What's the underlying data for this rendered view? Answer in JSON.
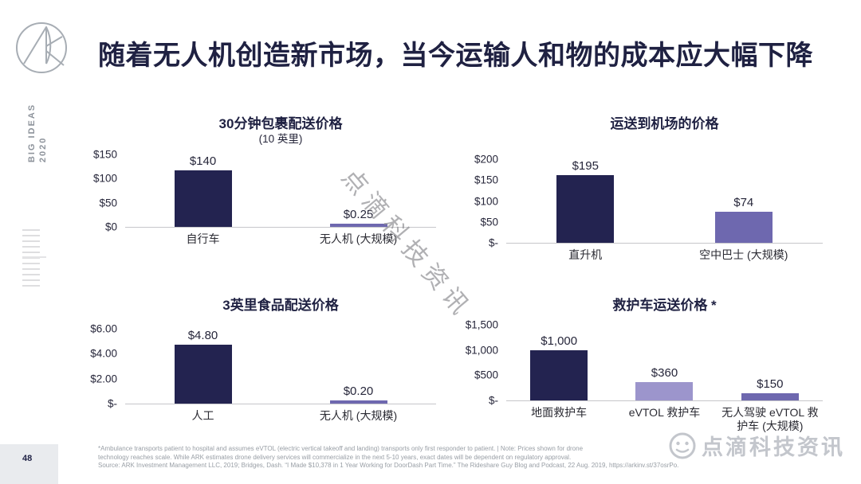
{
  "slide": {
    "title": "随着无人机创造新市场，当今运输人和物的成本应大幅下降",
    "sidebar_line1": "BIG IDEAS",
    "sidebar_line2": "2020",
    "page_number": "48",
    "watermark_center": "点滴科技资讯",
    "watermark_corner": "点滴科技资讯"
  },
  "footnote": {
    "line1": "*Ambulance transports patient to hospital and assumes eVTOL (electric vertical takeoff and landing) transports only first responder to patient.  |  Note: Prices shown for drone",
    "line2": "technology reaches scale. While ARK estimates drone delivery services will commercialize in the next 5-10 years, exact dates will be dependent on regulatory approval.",
    "line3": "Source: ARK Investment Management LLC, 2019; Bridges, Dash. “I Made $10,378 in 1 Year Working for DoorDash Part Time.” The Rideshare Guy Blog and Podcast, 22 Aug. 2019, https://arkinv.st/37osrPo."
  },
  "colors": {
    "navy": "#232350",
    "purple": "#6e68af",
    "light_purple": "#9c95cc",
    "axis_line": "#c6c6ca",
    "title_text": "#1f2142"
  },
  "chart_data": [
    {
      "type": "bar",
      "title_bold": "30",
      "title": "分钟包裹配送价格",
      "subtitle": "(10 英里)",
      "ylabel": "",
      "ylim": [
        0,
        150
      ],
      "ymax": 150,
      "yticks": [
        "$150",
        "$100",
        "$50",
        "$0"
      ],
      "categories": [
        "自行车",
        "无人机 (大规模)"
      ],
      "values": [
        140,
        0.25
      ],
      "bars": [
        {
          "label": "自行车",
          "value": 140,
          "value_label": "$140",
          "color": "#232350"
        },
        {
          "label": "无人机 (大规模)",
          "value": 0.25,
          "value_label": "$0.25",
          "color": "#6e68af"
        }
      ]
    },
    {
      "type": "bar",
      "title_bold": "",
      "title": "运送到机场的价格",
      "subtitle": "",
      "ylabel": "",
      "ylim": [
        0,
        200
      ],
      "ymax": 200,
      "yticks": [
        "$200",
        "$150",
        "$100",
        "$50",
        "$-"
      ],
      "categories": [
        "直升机",
        "空中巴士 (大规模)"
      ],
      "values": [
        195,
        74
      ],
      "bars": [
        {
          "label": "直升机",
          "value": 195,
          "value_label": "$195",
          "color": "#232350"
        },
        {
          "label": "空中巴士 (大规模)",
          "value": 74,
          "value_label": "$74",
          "color": "#6e68af"
        }
      ]
    },
    {
      "type": "bar",
      "title_bold": "3",
      "title": "英里食品配送价格",
      "subtitle": "",
      "ylabel": "",
      "ylim": [
        0,
        6
      ],
      "ymax": 6,
      "yticks": [
        "$6.00",
        "$4.00",
        "$2.00",
        "$-"
      ],
      "categories": [
        "人工",
        "无人机 (大规模)"
      ],
      "values": [
        4.8,
        0.2
      ],
      "bars": [
        {
          "label": "人工",
          "value": 4.8,
          "value_label": "$4.80",
          "color": "#232350"
        },
        {
          "label": "无人机 (大规模)",
          "value": 0.2,
          "value_label": "$0.20",
          "color": "#6e68af"
        }
      ]
    },
    {
      "type": "bar",
      "title_bold": "",
      "title": "救护车运送价格 *",
      "subtitle": "",
      "ylabel": "",
      "ylim": [
        0,
        1500
      ],
      "ymax": 1500,
      "yticks": [
        "$1,500",
        "$1,000",
        "$500",
        "$-"
      ],
      "categories": [
        "地面救护车",
        "eVTOL 救护车",
        "无人驾驶 eVTOL 救护车 (大规模)"
      ],
      "values": [
        1000,
        360,
        150
      ],
      "bars": [
        {
          "label": "地面救护车",
          "value": 1000,
          "value_label": "$1,000",
          "color": "#232350"
        },
        {
          "label": "eVTOL 救护车",
          "value": 360,
          "value_label": "$360",
          "color": "#9c95cc"
        },
        {
          "label": "无人驾驶 eVTOL 救护车 (大规模)",
          "value": 150,
          "value_label": "$150",
          "color": "#6e68af"
        }
      ]
    }
  ]
}
